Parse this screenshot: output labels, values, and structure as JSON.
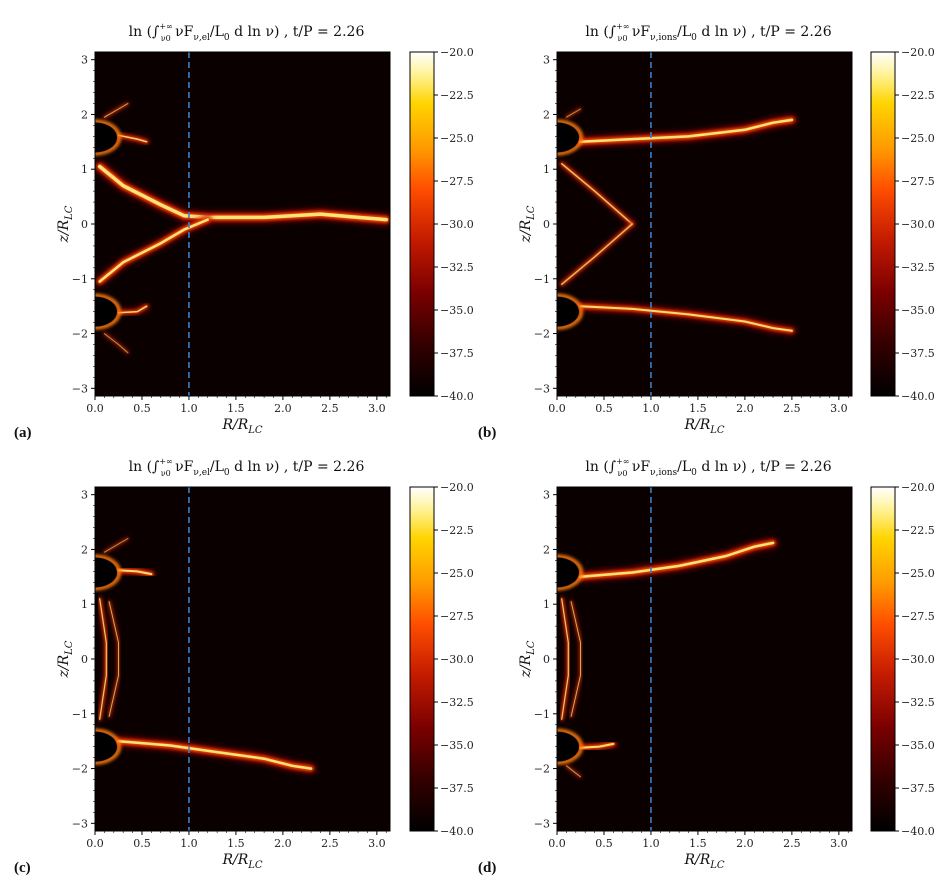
{
  "chart_data": [
    {
      "type": "heatmap",
      "panel": "(a)",
      "title": "ln(∫_{ν0}^{+∞} νF_{ν,el}/L0 d ln ν) , t/P = 2.26",
      "xlabel": "R/R_LC",
      "ylabel": "z/R_LC",
      "xlim": [
        0,
        3.14
      ],
      "ylim": [
        -3.14,
        3.14
      ],
      "xticks": [
        "0.0",
        "0.5",
        "1.0",
        "1.5",
        "2.0",
        "2.5",
        "3.0"
      ],
      "yticks": [
        "−3",
        "−2",
        "−1",
        "0",
        "1",
        "2",
        "3"
      ],
      "vline_x": 1.0,
      "colorbar": {
        "range": [
          -40,
          -20
        ],
        "ticks": [
          "−20.0",
          "−22.5",
          "−25.0",
          "−27.5",
          "−30.0",
          "−32.5",
          "−35.0",
          "−37.5",
          "−40.0"
        ],
        "colormap": "afmhot"
      },
      "emission": "equatorial current sheet from star to R≈3.1 plus polar caps near z≈±1.6"
    },
    {
      "type": "heatmap",
      "panel": "(b)",
      "title": "ln(∫_{ν0}^{+∞} νF_{ν,ions}/L0 d ln ν) , t/P = 2.26",
      "xlabel": "R/R_LC",
      "ylabel": "z/R_LC",
      "xlim": [
        0,
        3.14
      ],
      "ylim": [
        -3.14,
        3.14
      ],
      "xticks": [
        "0.0",
        "0.5",
        "1.0",
        "1.5",
        "2.0",
        "2.5",
        "3.0"
      ],
      "yticks": [
        "−3",
        "−2",
        "−1",
        "0",
        "1",
        "2",
        "3"
      ],
      "vline_x": 1.0,
      "colorbar": {
        "range": [
          -40,
          -20
        ],
        "ticks": [
          "−20.0",
          "−22.5",
          "−25.0",
          "−27.5",
          "−30.0",
          "−32.5",
          "−35.0",
          "−37.5",
          "−40.0"
        ],
        "colormap": "afmhot"
      },
      "emission": "two streams from z≈±1.5 reaching R≈2.5 at z≈±1.9"
    },
    {
      "type": "heatmap",
      "panel": "(c)",
      "title": "ln(∫_{ν0}^{+∞} νF_{ν,el}/L0 d ln ν) , t/P = 2.26",
      "xlabel": "R/R_LC",
      "ylabel": "z/R_LC",
      "xlim": [
        0,
        3.14
      ],
      "ylim": [
        -3.14,
        3.14
      ],
      "xticks": [
        "0.0",
        "0.5",
        "1.0",
        "1.5",
        "2.0",
        "2.5",
        "3.0"
      ],
      "yticks": [
        "−3",
        "−2",
        "−1",
        "0",
        "1",
        "2",
        "3"
      ],
      "vline_x": 1.0,
      "colorbar": {
        "range": [
          -40,
          -20
        ],
        "ticks": [
          "−20.0",
          "−22.5",
          "−25.0",
          "−27.5",
          "−30.0",
          "−32.5",
          "−35.0",
          "−37.5",
          "−40.0"
        ],
        "colormap": "afmhot"
      },
      "emission": "lower stream from z≈−1.5 to R≈2.3 at z≈−2.0; filaments along axis"
    },
    {
      "type": "heatmap",
      "panel": "(d)",
      "title": "ln(∫_{ν0}^{+∞} νF_{ν,ions}/L0 d ln ν) , t/P = 2.26",
      "xlabel": "R/R_LC",
      "ylabel": "z/R_LC",
      "xlim": [
        0,
        3.14
      ],
      "ylim": [
        -3.14,
        3.14
      ],
      "xticks": [
        "0.0",
        "0.5",
        "1.0",
        "1.5",
        "2.0",
        "2.5",
        "3.0"
      ],
      "yticks": [
        "−3",
        "−2",
        "−1",
        "0",
        "1",
        "2",
        "3"
      ],
      "vline_x": 1.0,
      "colorbar": {
        "range": [
          -40,
          -20
        ],
        "ticks": [
          "−20.0",
          "−22.5",
          "−25.0",
          "−27.5",
          "−30.0",
          "−32.5",
          "−35.0",
          "−37.5",
          "−40.0"
        ],
        "colormap": "afmhot"
      },
      "emission": "upper stream from z≈1.5 to R≈2.3 at z≈2.1; filaments along axis"
    }
  ],
  "colors": {
    "background_plot": "#0a0000",
    "vline": "#3a7fc8",
    "cmap": [
      "#000000",
      "#330000",
      "#7a0000",
      "#c21a00",
      "#ff4d00",
      "#ff9a00",
      "#ffd400",
      "#fff4a0",
      "#ffffff"
    ]
  }
}
